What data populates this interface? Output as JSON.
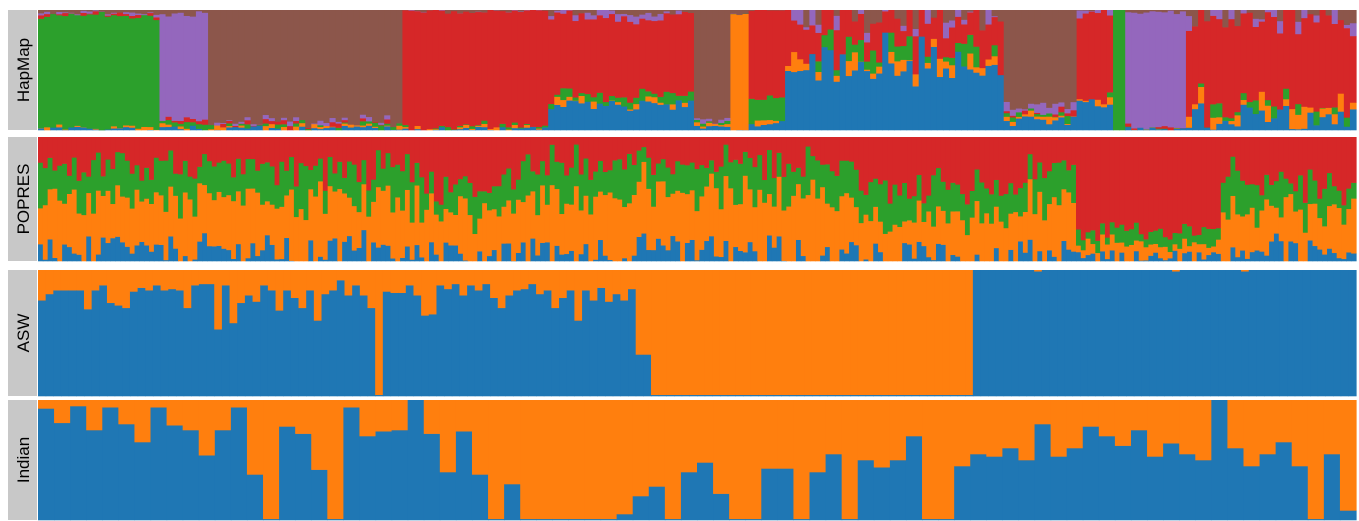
{
  "colors": {
    "blue": "#1f77b4",
    "orange": "#ff7f0e",
    "green": "#2ca02c",
    "red": "#d62728",
    "purple": "#9467bd",
    "brown": "#8c564b",
    "label_bg": "#c8c8c8"
  },
  "chart_data": [
    {
      "type": "bar",
      "stacked": true,
      "normalized": true,
      "label": "HapMap",
      "ylim": [
        0,
        1
      ],
      "series_colors": [
        "blue",
        "orange",
        "green",
        "red",
        "purple",
        "brown"
      ],
      "segments": [
        {
          "bars": 20,
          "props": [
            0.01,
            0.01,
            0.94,
            0.01,
            0.01,
            0.02
          ],
          "noise": 0.02
        },
        {
          "bars": 8,
          "props": [
            0.02,
            0.01,
            0.03,
            0.03,
            0.88,
            0.03
          ],
          "noise": 0.03
        },
        {
          "bars": 32,
          "props": [
            0.01,
            0.01,
            0.01,
            0.01,
            0.02,
            0.94
          ],
          "noise": 0.03
        },
        {
          "bars": 24,
          "props": [
            0.01,
            0.01,
            0.01,
            0.96,
            0.0,
            0.01
          ],
          "noise": 0.02
        },
        {
          "bars": 24,
          "props": [
            0.22,
            0.03,
            0.06,
            0.66,
            0.02,
            0.01
          ],
          "noise": 0.05
        },
        {
          "bars": 6,
          "props": [
            0.02,
            0.02,
            0.01,
            0.0,
            0.02,
            0.93
          ],
          "noise": 0.02
        },
        {
          "bars": 3,
          "props": [
            0.0,
            0.97,
            0.0,
            0.0,
            0.0,
            0.03
          ],
          "noise": 0.01
        },
        {
          "bars": 6,
          "props": [
            0.05,
            0.02,
            0.2,
            0.73,
            0.0,
            0.0
          ],
          "noise": 0.04
        },
        {
          "bars": 36,
          "props": [
            0.55,
            0.03,
            0.07,
            0.28,
            0.02,
            0.05
          ],
          "noise": 0.15
        },
        {
          "bars": 12,
          "props": [
            0.08,
            0.02,
            0.02,
            0.02,
            0.06,
            0.8
          ],
          "noise": 0.05
        },
        {
          "bars": 6,
          "props": [
            0.22,
            0.02,
            0.02,
            0.71,
            0.03,
            0.0
          ],
          "noise": 0.05
        },
        {
          "bars": 2,
          "props": [
            0.0,
            0.0,
            1.0,
            0.0,
            0.0,
            0.0
          ],
          "noise": 0.0
        },
        {
          "bars": 10,
          "props": [
            0.01,
            0.0,
            0.0,
            0.01,
            0.96,
            0.02
          ],
          "noise": 0.02
        },
        {
          "bars": 28,
          "props": [
            0.12,
            0.08,
            0.02,
            0.72,
            0.02,
            0.04
          ],
          "noise": 0.12
        }
      ]
    },
    {
      "type": "bar",
      "stacked": true,
      "normalized": true,
      "label": "POPRES",
      "ylim": [
        0,
        1
      ],
      "series_colors": [
        "blue",
        "orange",
        "green",
        "red"
      ],
      "segments": [
        {
          "bars": 80,
          "props": [
            0.08,
            0.42,
            0.25,
            0.25
          ],
          "noise": 0.14
        },
        {
          "bars": 20,
          "props": [
            0.06,
            0.34,
            0.2,
            0.4
          ],
          "noise": 0.12
        },
        {
          "bars": 70,
          "props": [
            0.09,
            0.45,
            0.26,
            0.2
          ],
          "noise": 0.15
        },
        {
          "bars": 35,
          "props": [
            0.05,
            0.3,
            0.25,
            0.4
          ],
          "noise": 0.14
        },
        {
          "bars": 10,
          "props": [
            0.05,
            0.4,
            0.3,
            0.25
          ],
          "noise": 0.12
        },
        {
          "bars": 30,
          "props": [
            0.04,
            0.1,
            0.1,
            0.76
          ],
          "noise": 0.06
        },
        {
          "bars": 4,
          "props": [
            0.05,
            0.4,
            0.3,
            0.25
          ],
          "noise": 0.1
        },
        {
          "bars": 24,
          "props": [
            0.06,
            0.32,
            0.24,
            0.38
          ],
          "noise": 0.14
        }
      ]
    },
    {
      "type": "bar",
      "stacked": true,
      "normalized": true,
      "label": "ASW",
      "ylim": [
        0,
        1
      ],
      "series_colors": [
        "blue",
        "orange"
      ],
      "orange_values": [
        0.24,
        0.19,
        0.16,
        0.16,
        0.16,
        0.16,
        0.31,
        0.16,
        0.12,
        0.26,
        0.28,
        0.3,
        0.17,
        0.14,
        0.16,
        0.12,
        0.16,
        0.15,
        0.16,
        0.3,
        0.12,
        0.11,
        0.11,
        0.47,
        0.12,
        0.42,
        0.26,
        0.2,
        0.25,
        0.12,
        0.16,
        0.32,
        0.16,
        0.22,
        0.3,
        0.16,
        0.4,
        0.19,
        0.16,
        0.08,
        0.2,
        0.12,
        0.2,
        0.3,
        0.99,
        0.17,
        0.18,
        0.18,
        0.12,
        0.2,
        0.36,
        0.35,
        0.12,
        0.15,
        0.11,
        0.2,
        0.12,
        0.16,
        0.11,
        0.22,
        0.3,
        0.2,
        0.16,
        0.15,
        0.11,
        0.19,
        0.16,
        0.3,
        0.22,
        0.16,
        0.4,
        0.16,
        0.24,
        0.14,
        0.25,
        0.19,
        0.24,
        0.15,
        0.67,
        0.67,
        0.99,
        0.99,
        0.99,
        0.99,
        0.99,
        0.99,
        0.99,
        0.99,
        0.99,
        0.99,
        0.99,
        0.99,
        0.99,
        0.99,
        0.99,
        0.99,
        0.99,
        0.99,
        0.99,
        0.99,
        0.99,
        0.99,
        0.99,
        0.99,
        0.99,
        0.99,
        0.99,
        0.99,
        0.99,
        0.99,
        0.99,
        0.99,
        0.99,
        0.99,
        0.99,
        0.99,
        0.99,
        0.99,
        0.99,
        0.99,
        0.99,
        0.99,
        0.0,
        0.0,
        0.0,
        0.0,
        0.0,
        0.0,
        0.0,
        0.0,
        0.01,
        0.0,
        0.0,
        0.0,
        0.0,
        0.0,
        0.0,
        0.0,
        0.0,
        0.0,
        0.0,
        0.0,
        0.0,
        0.0,
        0.0,
        0.0,
        0.0,
        0.0,
        0.01,
        0.0,
        0.0,
        0.0,
        0.0,
        0.0,
        0.0,
        0.0,
        0.0,
        0.01,
        0.0,
        0.0,
        0.0,
        0.0,
        0.0,
        0.0,
        0.0,
        0.0,
        0.0,
        0.0,
        0.0,
        0.0,
        0.0,
        0.0
      ]
    },
    {
      "type": "bar",
      "stacked": true,
      "normalized": true,
      "label": "Indian",
      "ylim": [
        0,
        1
      ],
      "series_colors": [
        "blue",
        "orange"
      ],
      "orange_values": [
        0.07,
        0.19,
        0.05,
        0.25,
        0.06,
        0.2,
        0.35,
        0.06,
        0.21,
        0.25,
        0.46,
        0.25,
        0.06,
        0.62,
        0.99,
        0.22,
        0.28,
        0.58,
        0.99,
        0.06,
        0.3,
        0.26,
        0.25,
        0.0,
        0.28,
        0.6,
        0.26,
        0.62,
        0.99,
        0.7,
        0.99,
        0.99,
        0.99,
        0.99,
        0.99,
        0.99,
        0.95,
        0.8,
        0.72,
        0.99,
        0.6,
        0.52,
        0.78,
        0.99,
        0.99,
        0.57,
        0.57,
        0.99,
        0.6,
        0.45,
        0.99,
        0.5,
        0.56,
        0.5,
        0.3,
        0.99,
        0.99,
        0.55,
        0.45,
        0.47,
        0.4,
        0.5,
        0.2,
        0.47,
        0.4,
        0.22,
        0.3,
        0.38,
        0.25,
        0.47,
        0.36,
        0.45,
        0.5,
        0.0,
        0.4,
        0.55,
        0.45,
        0.35,
        0.55,
        0.99,
        0.45,
        0.92
      ]
    }
  ]
}
